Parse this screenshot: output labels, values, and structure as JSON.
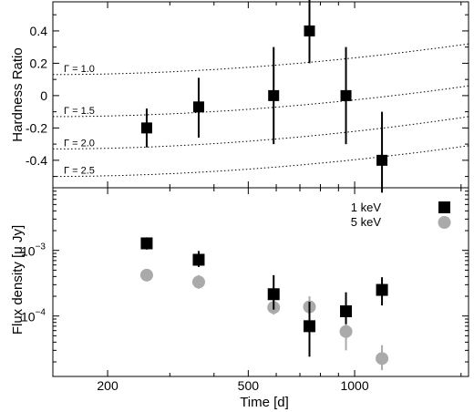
{
  "chart_data": [
    {
      "type": "scatter",
      "panel": "top",
      "ylabel": "Hardness Ratio",
      "xscale": "log",
      "xlim": [
        140,
        2100
      ],
      "ylim": [
        -0.57,
        0.58
      ],
      "yticks": [
        -0.4,
        -0.2,
        0,
        0.2,
        0.4
      ],
      "ytick_labels": [
        "-0.4",
        "-0.2",
        "0",
        "0.2",
        "0.4"
      ],
      "series": [
        {
          "marker": "square",
          "color": "#000000",
          "points": [
            {
              "x": 258,
              "y": -0.2,
              "err_lo": 0.12,
              "err_hi": 0.12
            },
            {
              "x": 362,
              "y": -0.07,
              "err_lo": 0.19,
              "err_hi": 0.18
            },
            {
              "x": 590,
              "y": 0.0,
              "err_lo": 0.3,
              "err_hi": 0.3
            },
            {
              "x": 745,
              "y": 0.4,
              "err_lo": 0.2,
              "err_hi": 0.2
            },
            {
              "x": 945,
              "y": 0.0,
              "err_lo": 0.3,
              "err_hi": 0.3
            },
            {
              "x": 1195,
              "y": -0.4,
              "err_lo": 0.2,
              "err_hi": 0.3
            }
          ]
        }
      ],
      "curves": [
        {
          "label": "Γ = 1.0",
          "y_start": 0.13,
          "y_end": 0.32
        },
        {
          "label": "Γ = 1.5",
          "y_start": -0.13,
          "y_end": 0.06
        },
        {
          "label": "Γ = 2.0",
          "y_start": -0.33,
          "y_end": -0.13
        },
        {
          "label": "Γ = 2.5",
          "y_start": -0.5,
          "y_end": -0.31
        }
      ]
    },
    {
      "type": "scatter",
      "panel": "bottom",
      "ylabel": "Flux density [μ Jy]",
      "xlabel": "Time [d]",
      "xscale": "log",
      "yscale": "log",
      "xlim": [
        140,
        2100
      ],
      "ylim": [
        1.2e-05,
        0.009
      ],
      "xticks": [
        200,
        500,
        1000
      ],
      "xtick_labels": [
        "200",
        "500",
        "1000"
      ],
      "yticks": [
        0.0001,
        0.001
      ],
      "ytick_labels": [
        [
          "10",
          "−4"
        ],
        [
          "10",
          "−3"
        ]
      ],
      "legend_position": "top-right",
      "series": [
        {
          "name": "1 keV",
          "marker": "square",
          "color": "#000000",
          "points": [
            {
              "x": 258,
              "y": 0.00128,
              "y_lo": 0.00103,
              "y_hi": 0.00158
            },
            {
              "x": 362,
              "y": 0.00072,
              "y_lo": 0.00056,
              "y_hi": 0.00098
            },
            {
              "x": 590,
              "y": 0.000215,
              "y_lo": 0.000125,
              "y_hi": 0.00042
            },
            {
              "x": 745,
              "y": 7e-05,
              "y_lo": 2.4e-05,
              "y_hi": 0.000165
            },
            {
              "x": 945,
              "y": 0.000118,
              "y_lo": 7.5e-05,
              "y_hi": 0.00023
            },
            {
              "x": 1195,
              "y": 0.00025,
              "y_lo": 0.000145,
              "y_hi": 0.00039
            }
          ]
        },
        {
          "name": "5 keV",
          "marker": "circle",
          "color": "#aaaaaa",
          "points": [
            {
              "x": 258,
              "y": 0.00042,
              "y_lo": 0.00034,
              "y_hi": 0.00052
            },
            {
              "x": 362,
              "y": 0.00033,
              "y_lo": 0.00026,
              "y_hi": 0.00042
            },
            {
              "x": 590,
              "y": 0.000135,
              "y_lo": 0.000105,
              "y_hi": 0.00017
            },
            {
              "x": 745,
              "y": 0.000138,
              "y_lo": 9.5e-05,
              "y_hi": 0.0002
            },
            {
              "x": 945,
              "y": 5.8e-05,
              "y_lo": 3e-05,
              "y_hi": 9e-05
            },
            {
              "x": 1195,
              "y": 2.25e-05,
              "y_lo": 1.5e-05,
              "y_hi": 3.6e-05
            }
          ]
        }
      ]
    }
  ]
}
